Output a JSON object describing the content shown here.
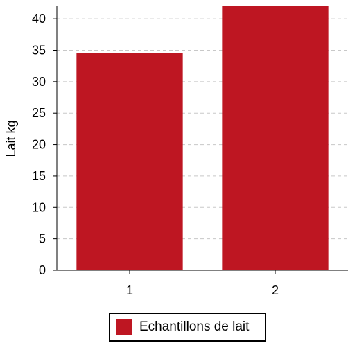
{
  "chart_data": {
    "type": "bar",
    "categories": [
      "1",
      "2"
    ],
    "series": [
      {
        "name": "Echantillons de lait",
        "values": [
          34.6,
          42
        ],
        "color": "#be1622"
      }
    ],
    "xlabel": "",
    "ylabel": "Lait kg",
    "ylim": [
      0,
      42
    ],
    "yticks": [
      0,
      5,
      10,
      15,
      20,
      25,
      30,
      35,
      40
    ],
    "grid": true,
    "legend_position": "bottom-center"
  },
  "legend": {
    "label": "Echantillons de lait",
    "color": "#be1622"
  }
}
